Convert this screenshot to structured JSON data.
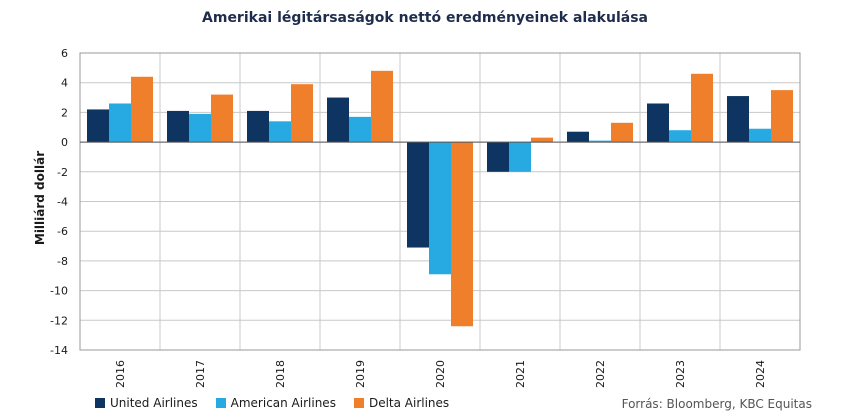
{
  "chart_data": {
    "type": "bar",
    "title": "Amerikai légitársaságok nettó eredményeinek  alakulása",
    "ylabel": "Milliárd dollár",
    "xlabel": "",
    "ylim": [
      -14,
      6
    ],
    "yticks": [
      6,
      4,
      2,
      0,
      -2,
      -4,
      -6,
      -8,
      -10,
      -12,
      -14
    ],
    "grid": true,
    "legend_position": "bottom-left",
    "categories": [
      "2016",
      "2017",
      "2018",
      "2019",
      "2020",
      "2021",
      "2022",
      "2023",
      "2024"
    ],
    "series": [
      {
        "name": "United Airlines",
        "color": "#0e3561",
        "values": [
          2.2,
          2.1,
          2.1,
          3.0,
          -7.1,
          -2.0,
          0.7,
          2.6,
          3.1
        ]
      },
      {
        "name": "American Airlines",
        "color": "#27a9e1",
        "values": [
          2.6,
          1.9,
          1.4,
          1.7,
          -8.9,
          -2.0,
          0.1,
          0.8,
          0.9
        ]
      },
      {
        "name": "Delta Airlines",
        "color": "#f07f2b",
        "values": [
          4.4,
          3.2,
          3.9,
          4.8,
          -12.4,
          0.3,
          1.3,
          4.6,
          3.5
        ]
      }
    ]
  },
  "source": "Forrás: Bloomberg,  KBC Equitas"
}
